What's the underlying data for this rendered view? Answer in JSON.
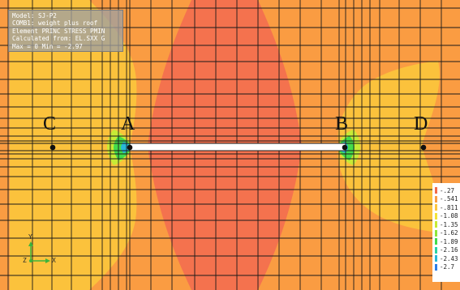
{
  "info": {
    "lines": [
      "Model: SJ-P2",
      "COMB1: weight plus roof",
      "Element PRINC STRESS PMIN",
      "Calculated from: EL.SXX G",
      "Max = 0  Min = -2.97"
    ]
  },
  "points": {
    "c": "C",
    "a": "A",
    "b": "B",
    "d": "D"
  },
  "legend": {
    "entries": [
      {
        "label": "-.27",
        "color": "#f26b4a"
      },
      {
        "label": "-.541",
        "color": "#f99e46"
      },
      {
        "label": "-.811",
        "color": "#fcc640"
      },
      {
        "label": "-1.08",
        "color": "#f1e23a"
      },
      {
        "label": "-1.35",
        "color": "#c7ea36"
      },
      {
        "label": "-1.62",
        "color": "#8fe63b"
      },
      {
        "label": "-1.89",
        "color": "#43dc4b"
      },
      {
        "label": "-2.16",
        "color": "#2ad3a4"
      },
      {
        "label": "-2.43",
        "color": "#28b8d9"
      },
      {
        "label": "-2.7",
        "color": "#2d7ee8"
      }
    ]
  },
  "axes": {
    "y": "Y",
    "z": "Z",
    "x": "X"
  },
  "colors": {
    "background_orange": "#fa9c42",
    "band_red": "#f4724e",
    "zone_yellow": "#fbc23c",
    "opening": "#ffffff",
    "grid_lines": "#1a1a1a"
  }
}
